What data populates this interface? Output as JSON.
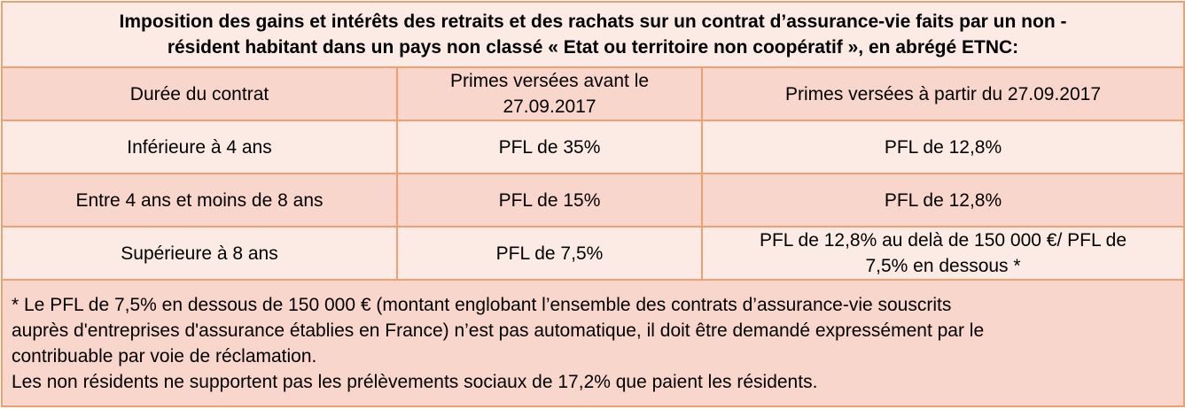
{
  "title": {
    "line1": "Imposition des gains et intérêts des retraits et des rachats sur un contrat d’assurance-vie faits par un non -",
    "line2": "résident habitant dans un pays non classé « Etat ou territoire non coopératif », en abrégé ETNC:"
  },
  "headers": {
    "duration": "Durée du contrat",
    "before_line1": "Primes versées avant le",
    "before_line2": "27.09.2017",
    "after": "Primes versées à partir du 27.09.2017"
  },
  "rows": [
    {
      "duration": "Inférieure à 4 ans",
      "before": "PFL de 35%",
      "after_line1": "PFL de 12,8%",
      "after_line2": ""
    },
    {
      "duration": "Entre 4 ans et moins de 8 ans",
      "before": "PFL de 15%",
      "after_line1": "PFL de 12,8%",
      "after_line2": ""
    },
    {
      "duration": "Supérieure à 8 ans",
      "before": "PFL de 7,5%",
      "after_line1": "PFL de 12,8% au delà de 150 000 €/ PFL de",
      "after_line2": "7,5% en dessous  *"
    }
  ],
  "note": {
    "line1": "* Le PFL de 7,5% en dessous de 150 000 € (montant englobant l’ensemble des contrats d’assurance-vie souscrits",
    "line2": "auprès d'entreprises d'assurance établies en France) n’est pas automatique, il doit être demandé expressément par le",
    "line3": "contribuable par voie de réclamation.",
    "line4": "Les non résidents ne supportent pas les prélèvements sociaux de 17,2% que paient les résidents."
  },
  "colors": {
    "border": "#f0a070",
    "light_fill": "#fcebe5",
    "dark_fill": "#f8d6cb"
  }
}
